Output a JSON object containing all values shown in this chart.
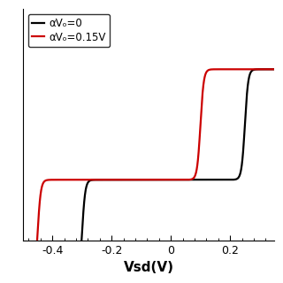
{
  "title": "",
  "xlabel": "Vsd(V)",
  "ylabel": "",
  "xlim": [
    -0.5,
    0.35
  ],
  "xticklabels": [
    "-0.4",
    "-0.2",
    "0",
    "0.2"
  ],
  "xticks": [
    -0.4,
    -0.2,
    0.0,
    0.2
  ],
  "line1_color": "black",
  "line2_color": "#cc0000",
  "line1_label": "αVₒ=0",
  "line2_label": "αVₒ=0.15V",
  "black_step1": -0.3,
  "black_step2": 0.25,
  "red_shift": -0.15,
  "I_low": -1.0,
  "I_mid": 0.0,
  "I_high": 1.0,
  "sharpness": 90,
  "linewidth": 1.6,
  "legend_fontsize": 8.5,
  "figsize": [
    3.2,
    3.2
  ],
  "dpi": 100
}
